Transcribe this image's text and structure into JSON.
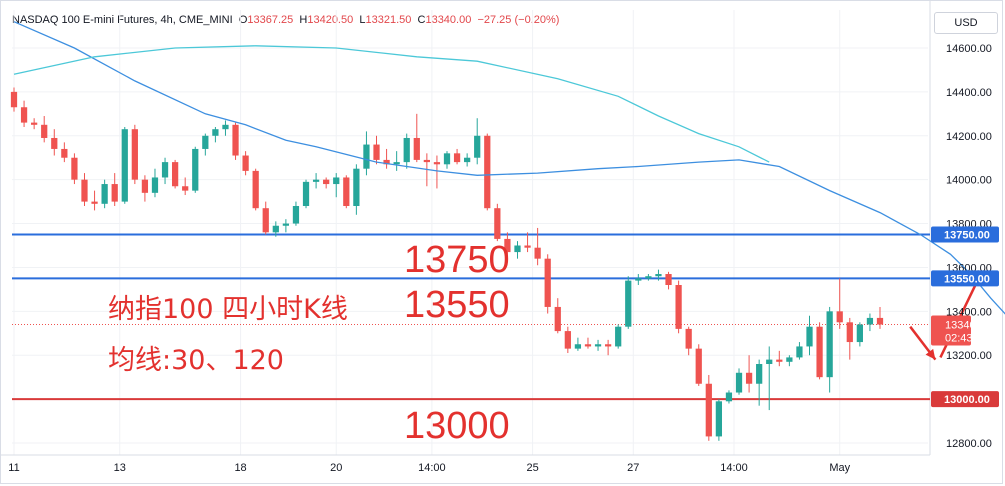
{
  "header": {
    "symbol": "NASDAQ 100 E-mini Futures, 4h, CME_MINI",
    "o_label": "O",
    "o_value": "13367.25",
    "h_label": "H",
    "h_value": "13420.50",
    "l_label": "L",
    "l_value": "13321.50",
    "c_label": "C",
    "c_value": "13340.00",
    "change": "−27.25 (−0.20%)"
  },
  "currency": "USD",
  "colors": {
    "up": "#26a69a",
    "down": "#ef5350",
    "blue_line": "#2a6ddc",
    "red_line": "#d93a3a",
    "ma_short": "#3d8fe0",
    "ma_long": "#4cc8d8",
    "annotation": "#e3312e"
  },
  "annotations": {
    "level_13750": "13750",
    "level_13550": "13550",
    "level_13000": "13000",
    "title_line": "纳指100 四小时K线",
    "ma_line": "均线:30、120"
  },
  "chart_data": {
    "type": "candlestick",
    "ylim": [
      12700,
      14750
    ],
    "y_ticks": [
      12800,
      13000,
      13200,
      13400,
      13600,
      13800,
      14000,
      14200,
      14400,
      14600
    ],
    "y_tick_labels": [
      "12800.00",
      "13000.00",
      "13200.00",
      "13400.00",
      "13600.00",
      "13800.00",
      "14000.00",
      "14200.00",
      "14400.00",
      "14600.00"
    ],
    "x_tick_labels": [
      "11",
      "13",
      "18",
      "20",
      "14:00",
      "25",
      "27",
      "14:00",
      "May"
    ],
    "horizontal_lines": [
      {
        "value": 13750,
        "label": "13750.00",
        "color": "#2a6ddc"
      },
      {
        "value": 13550,
        "label": "13550.00",
        "color": "#2a6ddc"
      },
      {
        "value": 13000,
        "label": "13000.00",
        "color": "#d93a3a"
      }
    ],
    "last_price": {
      "label": "13340.00",
      "countdown": "02:43:52"
    },
    "candles": [
      [
        14400,
        14420,
        14310,
        14330
      ],
      [
        14330,
        14360,
        14240,
        14260
      ],
      [
        14260,
        14280,
        14230,
        14250
      ],
      [
        14250,
        14290,
        14170,
        14190
      ],
      [
        14190,
        14230,
        14110,
        14140
      ],
      [
        14140,
        14170,
        14080,
        14100
      ],
      [
        14100,
        14120,
        13980,
        14000
      ],
      [
        14000,
        14030,
        13880,
        13900
      ],
      [
        13900,
        13950,
        13860,
        13890
      ],
      [
        13890,
        14000,
        13870,
        13980
      ],
      [
        13980,
        14030,
        13880,
        13900
      ],
      [
        13900,
        14240,
        13890,
        14230
      ],
      [
        14230,
        14250,
        13980,
        14000
      ],
      [
        14000,
        14020,
        13900,
        13940
      ],
      [
        13940,
        14050,
        13920,
        14010
      ],
      [
        14010,
        14100,
        13980,
        14080
      ],
      [
        14080,
        14090,
        13960,
        13970
      ],
      [
        13970,
        14010,
        13930,
        13950
      ],
      [
        13950,
        14150,
        13940,
        14140
      ],
      [
        14140,
        14210,
        14110,
        14200
      ],
      [
        14200,
        14240,
        14170,
        14230
      ],
      [
        14230,
        14270,
        14200,
        14250
      ],
      [
        14250,
        14260,
        14090,
        14110
      ],
      [
        14110,
        14130,
        14020,
        14040
      ],
      [
        14040,
        14050,
        13860,
        13870
      ],
      [
        13870,
        13900,
        13750,
        13760
      ],
      [
        13760,
        13810,
        13740,
        13790
      ],
      [
        13790,
        13820,
        13760,
        13800
      ],
      [
        13800,
        13900,
        13790,
        13880
      ],
      [
        13880,
        14000,
        13870,
        13990
      ],
      [
        13990,
        14030,
        13960,
        14000
      ],
      [
        14000,
        14010,
        13960,
        13980
      ],
      [
        13980,
        14030,
        13920,
        14010
      ],
      [
        14010,
        14020,
        13870,
        13880
      ],
      [
        13880,
        14070,
        13840,
        14050
      ],
      [
        14050,
        14220,
        14020,
        14160
      ],
      [
        14160,
        14200,
        14070,
        14090
      ],
      [
        14090,
        14140,
        14050,
        14070
      ],
      [
        14070,
        14130,
        14040,
        14080
      ],
      [
        14080,
        14210,
        14050,
        14190
      ],
      [
        14190,
        14300,
        14080,
        14090
      ],
      [
        14090,
        14120,
        13970,
        14080
      ],
      [
        14080,
        14110,
        13960,
        14070
      ],
      [
        14070,
        14130,
        14050,
        14120
      ],
      [
        14120,
        14140,
        14070,
        14080
      ],
      [
        14080,
        14120,
        14060,
        14100
      ],
      [
        14100,
        14280,
        14070,
        14200
      ],
      [
        14200,
        14210,
        13860,
        13870
      ],
      [
        13870,
        13890,
        13720,
        13730
      ],
      [
        13730,
        13760,
        13640,
        13670
      ],
      [
        13670,
        13720,
        13640,
        13700
      ],
      [
        13700,
        13760,
        13670,
        13690
      ],
      [
        13690,
        13780,
        13610,
        13640
      ],
      [
        13640,
        13660,
        13390,
        13420
      ],
      [
        13420,
        13460,
        13300,
        13310
      ],
      [
        13310,
        13330,
        13210,
        13230
      ],
      [
        13230,
        13280,
        13220,
        13250
      ],
      [
        13250,
        13280,
        13230,
        13240
      ],
      [
        13240,
        13270,
        13220,
        13250
      ],
      [
        13250,
        13270,
        13200,
        13240
      ],
      [
        13240,
        13340,
        13230,
        13330
      ],
      [
        13330,
        13560,
        13320,
        13540
      ],
      [
        13540,
        13570,
        13520,
        13550
      ],
      [
        13550,
        13570,
        13540,
        13560
      ],
      [
        13560,
        13590,
        13540,
        13570
      ],
      [
        13570,
        13580,
        13500,
        13520
      ],
      [
        13520,
        13540,
        13300,
        13320
      ],
      [
        13320,
        13330,
        13200,
        13230
      ],
      [
        13230,
        13250,
        13060,
        13070
      ],
      [
        13070,
        13110,
        12810,
        12830
      ],
      [
        12830,
        13000,
        12810,
        12990
      ],
      [
        12990,
        13040,
        12980,
        13030
      ],
      [
        13030,
        13140,
        13020,
        13120
      ],
      [
        13120,
        13200,
        13030,
        13070
      ],
      [
        13070,
        13180,
        12970,
        13160
      ],
      [
        13160,
        13240,
        12950,
        13180
      ],
      [
        13180,
        13220,
        13150,
        13170
      ],
      [
        13170,
        13200,
        13150,
        13190
      ],
      [
        13190,
        13260,
        13180,
        13240
      ],
      [
        13240,
        13380,
        13200,
        13330
      ],
      [
        13330,
        13350,
        13090,
        13100
      ],
      [
        13100,
        13420,
        13030,
        13400
      ],
      [
        13400,
        13550,
        13320,
        13350
      ],
      [
        13350,
        13370,
        13180,
        13260
      ],
      [
        13260,
        13350,
        13240,
        13340
      ],
      [
        13340,
        13390,
        13310,
        13370
      ],
      [
        13370,
        13420,
        13320,
        13340
      ]
    ],
    "ma30_name": "MA 30",
    "ma30": [
      [
        14720,
        0
      ],
      [
        14600,
        6
      ],
      [
        14450,
        12
      ],
      [
        14300,
        19
      ],
      [
        14250,
        23
      ],
      [
        14180,
        27
      ],
      [
        14150,
        30
      ],
      [
        14080,
        36
      ],
      [
        14040,
        42
      ],
      [
        14020,
        46
      ],
      [
        14030,
        52
      ],
      [
        14050,
        58
      ],
      [
        14060,
        62
      ],
      [
        14080,
        68
      ],
      [
        14090,
        72
      ],
      [
        14060,
        76
      ],
      [
        13950,
        81
      ],
      [
        13850,
        86
      ],
      [
        13750,
        90
      ],
      [
        13660,
        93
      ],
      [
        13570,
        95
      ],
      [
        13460,
        97
      ],
      [
        13360,
        99
      ],
      [
        13320,
        100
      ],
      [
        13270,
        102
      ]
    ],
    "ma120_name": "MA 120",
    "ma120": [
      [
        14480,
        0
      ],
      [
        14560,
        8
      ],
      [
        14600,
        16
      ],
      [
        14610,
        24
      ],
      [
        14600,
        32
      ],
      [
        14560,
        40
      ],
      [
        14540,
        46
      ],
      [
        14460,
        54
      ],
      [
        14380,
        60
      ],
      [
        14290,
        64
      ],
      [
        14210,
        68
      ],
      [
        14150,
        72
      ],
      [
        14080,
        75
      ]
    ],
    "arrows": [
      {
        "from": [
          13330,
          89
        ],
        "to": [
          13180,
          91.5
        ]
      },
      {
        "from": [
          13190,
          92
        ],
        "to": [
          13570,
          96
        ]
      }
    ]
  }
}
